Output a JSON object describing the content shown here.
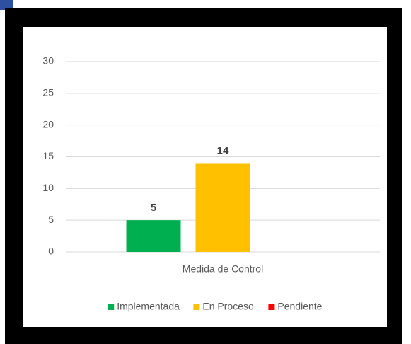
{
  "chart_data": {
    "type": "bar",
    "categories": [
      "Medida de Control"
    ],
    "series": [
      {
        "name": "Implementada",
        "color": "#00b050",
        "values": [
          5
        ]
      },
      {
        "name": "En Proceso",
        "color": "#ffc000",
        "values": [
          14
        ]
      },
      {
        "name": "Pendiente",
        "color": "#ff0000",
        "values": [
          0
        ]
      }
    ],
    "ylim": [
      0,
      30
    ],
    "yticks": [
      0,
      5,
      10,
      15,
      20,
      25,
      30
    ],
    "grid": true,
    "legend": "bottom"
  }
}
